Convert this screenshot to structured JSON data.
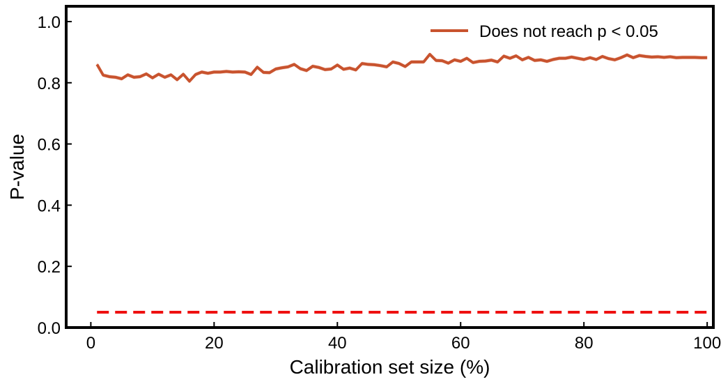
{
  "chart_data": {
    "type": "line",
    "xlabel": "Calibration set size (%)",
    "ylabel": "P-value",
    "xlim": [
      -4,
      101
    ],
    "ylim": [
      0,
      1.05
    ],
    "xticks": [
      0,
      20,
      40,
      60,
      80,
      100
    ],
    "yticks": [
      0.0,
      0.2,
      0.4,
      0.6,
      0.8,
      1.0
    ],
    "xtick_labels": [
      "0",
      "20",
      "40",
      "60",
      "80",
      "100"
    ],
    "ytick_labels": [
      "0.0",
      "0.2",
      "0.4",
      "0.6",
      "0.8",
      "1.0"
    ],
    "grid": false,
    "legend_position": "top-right",
    "series": [
      {
        "name": "Does not reach p < 0.05",
        "color": "#c8532e",
        "band_color": "#f3c7b9",
        "x": [
          1,
          2,
          3,
          4,
          5,
          6,
          7,
          8,
          9,
          10,
          11,
          12,
          13,
          14,
          15,
          16,
          17,
          18,
          19,
          20,
          21,
          22,
          23,
          24,
          25,
          26,
          27,
          28,
          29,
          30,
          31,
          32,
          33,
          34,
          35,
          36,
          37,
          38,
          39,
          40,
          41,
          42,
          43,
          44,
          45,
          46,
          47,
          48,
          49,
          50,
          51,
          52,
          53,
          54,
          55,
          56,
          57,
          58,
          59,
          60,
          61,
          62,
          63,
          64,
          65,
          66,
          67,
          68,
          69,
          70,
          71,
          72,
          73,
          74,
          75,
          76,
          77,
          78,
          79,
          80,
          81,
          82,
          83,
          84,
          85,
          86,
          87,
          88,
          89,
          90,
          91,
          92,
          93,
          94,
          95,
          96,
          97,
          98,
          99,
          100
        ],
        "values": [
          0.86,
          0.825,
          0.82,
          0.818,
          0.813,
          0.826,
          0.818,
          0.82,
          0.829,
          0.816,
          0.828,
          0.818,
          0.826,
          0.81,
          0.828,
          0.805,
          0.827,
          0.835,
          0.831,
          0.835,
          0.835,
          0.837,
          0.835,
          0.836,
          0.835,
          0.827,
          0.851,
          0.834,
          0.833,
          0.845,
          0.849,
          0.852,
          0.86,
          0.846,
          0.84,
          0.854,
          0.85,
          0.843,
          0.845,
          0.858,
          0.844,
          0.848,
          0.842,
          0.863,
          0.86,
          0.859,
          0.856,
          0.852,
          0.868,
          0.863,
          0.853,
          0.868,
          0.868,
          0.868,
          0.893,
          0.873,
          0.872,
          0.864,
          0.875,
          0.87,
          0.88,
          0.866,
          0.87,
          0.871,
          0.874,
          0.868,
          0.887,
          0.88,
          0.888,
          0.875,
          0.883,
          0.873,
          0.875,
          0.87,
          0.876,
          0.88,
          0.88,
          0.884,
          0.88,
          0.876,
          0.882,
          0.876,
          0.886,
          0.879,
          0.875,
          0.882,
          0.891,
          0.882,
          0.889,
          0.886,
          0.884,
          0.885,
          0.883,
          0.885,
          0.882,
          0.883,
          0.883,
          0.883,
          0.882,
          0.882
        ],
        "band": 0.006
      }
    ],
    "reference_line": {
      "y": 0.05,
      "x_range": [
        1,
        100
      ],
      "color": "#ee1111",
      "style": "dashed"
    }
  }
}
